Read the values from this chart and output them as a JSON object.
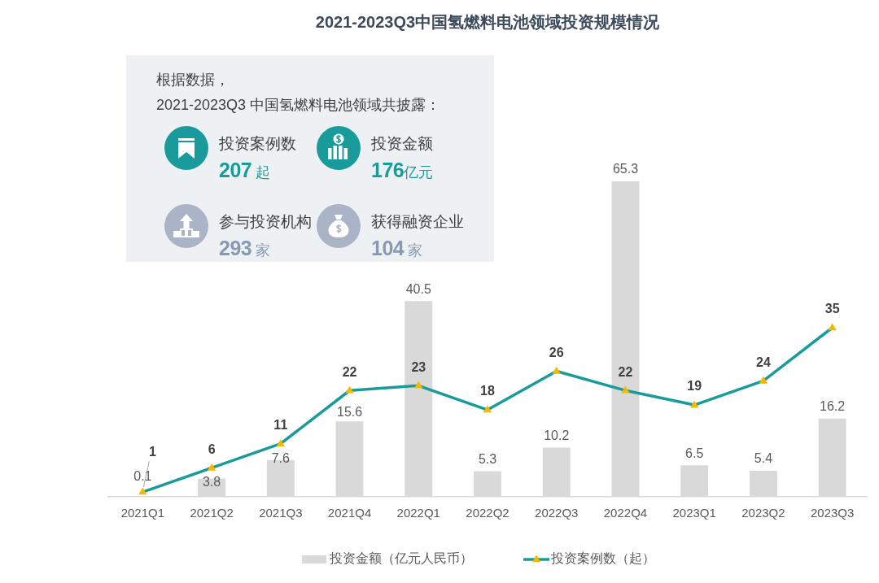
{
  "chart_data": [
    {
      "type": "bar",
      "title": "2021-2023Q3中国氢燃料电池领域投资规模情况",
      "categories": [
        "2021Q1",
        "2021Q2",
        "2021Q3",
        "2021Q4",
        "2022Q1",
        "2022Q2",
        "2022Q3",
        "2022Q4",
        "2023Q1",
        "2023Q2",
        "2023Q3"
      ],
      "series": [
        {
          "name": "投资金额（亿元人民币）",
          "type": "bar",
          "color": "#d9d9d9",
          "values": [
            0.1,
            3.8,
            7.6,
            15.6,
            40.5,
            5.3,
            10.2,
            65.3,
            6.5,
            5.4,
            16.2
          ]
        },
        {
          "name": "投资案例数（起）",
          "type": "line",
          "color": "#1a9b9b",
          "values": [
            1,
            6,
            11,
            22,
            23,
            18,
            26,
            22,
            19,
            24,
            35
          ]
        }
      ],
      "marker": "triangle",
      "data_labels": true,
      "legend": "bottom",
      "tick_labels": "x"
    },
    {
      "type": "other",
      "annotations": [
        "根据数据，",
        "2021-2023Q3 中国氢燃料电池领域共披露：",
        "投资案例数",
        "207 起",
        "投资金额",
        "176亿元",
        "参与投资机构",
        "293 家",
        "获得融资企业",
        "104 家"
      ]
    }
  ]
}
